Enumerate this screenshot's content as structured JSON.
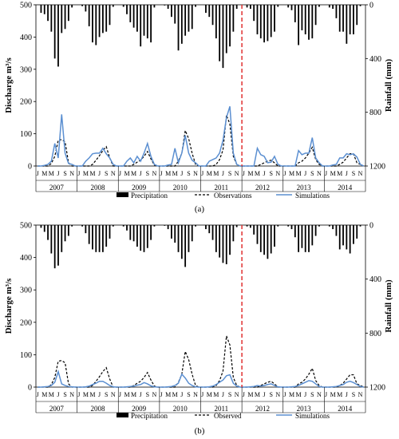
{
  "chart_data": [
    {
      "panel_label": "(a)",
      "type": "line",
      "ylabel_left": "Discharge m³/s",
      "ylabel_right": "Rainfall (mm)",
      "ylim_left": [
        0,
        500
      ],
      "ylim_right": [
        0,
        1200
      ],
      "right_axis_inverted": true,
      "left_ticks": [
        0,
        100,
        200,
        300,
        400,
        500
      ],
      "right_ticks": [
        0,
        400,
        800,
        1200
      ],
      "years": [
        "2007",
        "2008",
        "2009",
        "2010",
        "2011",
        "2012",
        "2013",
        "2014"
      ],
      "month_labels": [
        "J",
        "M",
        "M",
        "J",
        "S",
        "N"
      ],
      "divider_after_month": 60,
      "legend": [
        {
          "key": "precip",
          "label": "Precipitation"
        },
        {
          "key": "obs",
          "label": "Observations"
        },
        {
          "key": "sim",
          "label": "Simulations"
        }
      ],
      "series": {
        "precip": [
          0,
          60,
          70,
          120,
          200,
          400,
          460,
          210,
          180,
          120,
          20,
          0,
          0,
          10,
          50,
          160,
          280,
          300,
          240,
          210,
          200,
          150,
          15,
          0,
          0,
          15,
          70,
          130,
          170,
          200,
          310,
          230,
          250,
          280,
          20,
          0,
          0,
          5,
          30,
          90,
          140,
          340,
          290,
          230,
          200,
          180,
          15,
          0,
          0,
          60,
          90,
          150,
          250,
          420,
          470,
          360,
          310,
          200,
          30,
          0,
          0,
          20,
          30,
          120,
          220,
          250,
          280,
          270,
          240,
          200,
          15,
          0,
          0,
          20,
          40,
          130,
          300,
          190,
          220,
          260,
          250,
          150,
          15,
          0,
          0,
          20,
          30,
          100,
          200,
          200,
          290,
          220,
          220,
          150,
          10,
          0
        ],
        "obs": [
          0,
          0,
          0,
          0,
          8,
          30,
          80,
          82,
          75,
          10,
          0,
          0,
          0,
          0,
          0,
          0,
          5,
          18,
          32,
          48,
          60,
          25,
          0,
          0,
          0,
          0,
          0,
          0,
          5,
          12,
          18,
          30,
          45,
          22,
          3,
          0,
          0,
          0,
          0,
          0,
          0,
          15,
          40,
          110,
          85,
          40,
          5,
          0,
          0,
          0,
          0,
          0,
          5,
          20,
          50,
          158,
          130,
          30,
          5,
          0,
          0,
          0,
          0,
          0,
          0,
          5,
          10,
          15,
          18,
          10,
          0,
          0,
          0,
          0,
          0,
          0,
          10,
          15,
          25,
          40,
          58,
          20,
          5,
          0,
          0,
          0,
          0,
          0,
          5,
          12,
          25,
          38,
          38,
          10,
          5,
          0
        ],
        "sim": [
          0,
          0,
          2,
          5,
          15,
          70,
          25,
          160,
          40,
          8,
          5,
          0,
          0,
          0,
          15,
          25,
          38,
          40,
          40,
          55,
          38,
          25,
          5,
          0,
          0,
          0,
          15,
          25,
          10,
          30,
          15,
          40,
          70,
          30,
          5,
          0,
          0,
          0,
          3,
          5,
          55,
          10,
          40,
          95,
          40,
          18,
          10,
          0,
          0,
          0,
          15,
          20,
          25,
          40,
          80,
          150,
          185,
          40,
          5,
          0,
          0,
          0,
          0,
          0,
          55,
          35,
          30,
          10,
          12,
          30,
          5,
          0,
          0,
          0,
          0,
          0,
          48,
          35,
          40,
          40,
          88,
          25,
          10,
          0,
          0,
          0,
          3,
          5,
          25,
          25,
          38,
          35,
          38,
          28,
          5,
          0
        ]
      }
    },
    {
      "panel_label": "(b)",
      "type": "line",
      "ylabel_left": "Discharge m³/s",
      "ylabel_right": "Rainfall (mm)",
      "ylim_left": [
        0,
        500
      ],
      "ylim_right": [
        0,
        1200
      ],
      "right_axis_inverted": true,
      "left_ticks": [
        0,
        100,
        200,
        300,
        400,
        500
      ],
      "right_ticks": [
        0,
        400,
        800,
        1200
      ],
      "years": [
        "2007",
        "2008",
        "2009",
        "2010",
        "2011",
        "2012",
        "2013",
        "2014"
      ],
      "month_labels": [
        "J",
        "M",
        "M",
        "J",
        "S",
        "N"
      ],
      "divider_after_month": 60,
      "legend": [
        {
          "key": "precip",
          "label": "Precipitation"
        },
        {
          "key": "obs",
          "label": "Observed"
        },
        {
          "key": "sim",
          "label": "Simulations"
        }
      ],
      "series": {
        "precip": [
          0,
          20,
          50,
          110,
          210,
          320,
          300,
          200,
          120,
          80,
          10,
          0,
          0,
          10,
          60,
          140,
          180,
          200,
          200,
          200,
          160,
          100,
          10,
          0,
          0,
          10,
          40,
          110,
          120,
          160,
          190,
          200,
          170,
          110,
          10,
          0,
          0,
          5,
          30,
          100,
          130,
          200,
          250,
          310,
          200,
          120,
          10,
          0,
          0,
          30,
          60,
          110,
          200,
          240,
          280,
          290,
          220,
          120,
          15,
          0,
          0,
          10,
          20,
          70,
          140,
          200,
          220,
          250,
          210,
          160,
          10,
          0,
          0,
          10,
          30,
          90,
          200,
          170,
          200,
          200,
          150,
          80,
          10,
          0,
          0,
          10,
          30,
          80,
          180,
          150,
          180,
          210,
          140,
          100,
          10,
          0
        ],
        "obs": [
          0,
          0,
          0,
          0,
          8,
          30,
          80,
          82,
          75,
          10,
          0,
          0,
          0,
          0,
          0,
          0,
          5,
          18,
          32,
          48,
          60,
          25,
          0,
          0,
          0,
          0,
          0,
          0,
          5,
          12,
          18,
          30,
          45,
          22,
          3,
          0,
          0,
          0,
          0,
          0,
          0,
          15,
          40,
          110,
          85,
          40,
          5,
          0,
          0,
          0,
          0,
          0,
          5,
          20,
          50,
          158,
          130,
          30,
          5,
          0,
          0,
          0,
          0,
          0,
          0,
          5,
          10,
          15,
          18,
          10,
          0,
          0,
          0,
          0,
          0,
          0,
          10,
          15,
          25,
          40,
          58,
          20,
          5,
          0,
          0,
          0,
          0,
          0,
          5,
          12,
          25,
          38,
          38,
          10,
          5,
          0
        ],
        "sim": [
          0,
          0,
          1,
          2,
          5,
          15,
          48,
          10,
          5,
          2,
          1,
          0,
          0,
          0,
          1,
          3,
          8,
          12,
          18,
          18,
          12,
          5,
          1,
          0,
          0,
          0,
          1,
          2,
          3,
          6,
          8,
          14,
          10,
          4,
          1,
          0,
          0,
          0,
          1,
          2,
          5,
          12,
          40,
          28,
          12,
          5,
          1,
          0,
          0,
          0,
          1,
          3,
          8,
          15,
          22,
          35,
          38,
          12,
          3,
          0,
          0,
          0,
          1,
          2,
          5,
          3,
          5,
          8,
          10,
          5,
          1,
          0,
          0,
          0,
          1,
          2,
          5,
          10,
          15,
          20,
          18,
          10,
          2,
          0,
          0,
          0,
          1,
          2,
          5,
          8,
          15,
          18,
          14,
          8,
          2,
          0
        ]
      }
    }
  ]
}
